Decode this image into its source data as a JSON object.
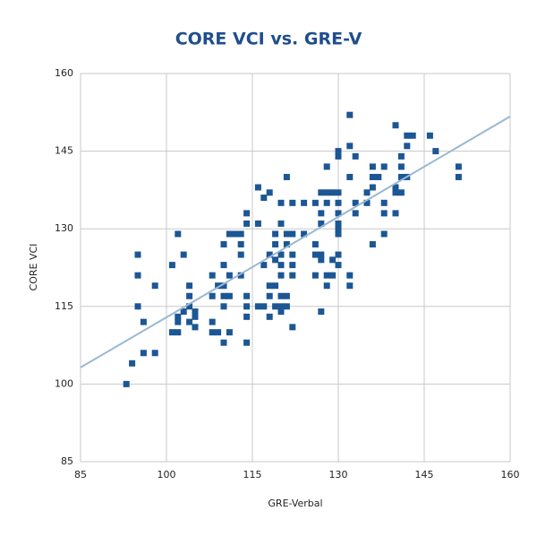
{
  "chart_data": {
    "type": "scatter",
    "title": "CORE VCI vs. GRE-V",
    "x_label": "GRE-Verbal",
    "y_label": "CORE VCI",
    "xlim": [
      85,
      160
    ],
    "xticks": [
      85,
      100,
      115,
      130,
      145,
      160
    ],
    "ylim": [
      85,
      160
    ],
    "yticks": [
      85,
      100,
      115,
      130,
      145,
      160
    ],
    "grid": true,
    "series": [
      {
        "color": "#1c5694",
        "x": [
          93,
          94,
          95,
          95,
          95,
          96,
          96,
          98,
          98,
          101,
          101,
          102,
          102,
          102,
          102,
          103,
          103,
          104,
          104,
          104,
          104,
          105,
          105,
          105,
          108,
          108,
          108,
          108,
          109,
          109,
          110,
          110,
          110,
          110,
          110,
          110,
          111,
          111,
          111,
          111,
          112,
          113,
          113,
          113,
          113,
          114,
          114,
          114,
          114,
          114,
          114,
          116,
          116,
          116,
          117,
          117,
          117,
          118,
          118,
          118,
          118,
          118,
          119,
          119,
          119,
          119,
          119,
          120,
          120,
          120,
          120,
          120,
          120,
          120,
          120,
          121,
          121,
          121,
          121,
          121,
          122,
          122,
          122,
          122,
          122,
          122,
          124,
          124,
          126,
          126,
          126,
          126,
          127,
          127,
          127,
          127,
          127,
          127,
          128,
          128,
          128,
          128,
          128,
          129,
          129,
          129,
          130,
          130,
          130,
          130,
          130,
          130,
          130,
          130,
          130,
          130,
          132,
          132,
          132,
          132,
          132,
          133,
          133,
          133,
          135,
          135,
          136,
          136,
          136,
          136,
          137,
          138,
          138,
          138,
          138,
          140,
          140,
          140,
          140,
          141,
          141,
          141,
          141,
          142,
          142,
          142,
          143,
          146,
          147,
          151,
          151
        ],
        "values": [
          100,
          104,
          125,
          121,
          115,
          112,
          106,
          119,
          106,
          123,
          110,
          110,
          129,
          113,
          112,
          125,
          114,
          119,
          117,
          115,
          112,
          114,
          113,
          111,
          121,
          117,
          112,
          110,
          119,
          110,
          127,
          123,
          119,
          117,
          115,
          108,
          121,
          117,
          110,
          129,
          129,
          129,
          127,
          125,
          121,
          133,
          131,
          117,
          115,
          113,
          108,
          138,
          131,
          115,
          136,
          123,
          115,
          137,
          125,
          119,
          117,
          113,
          129,
          127,
          124,
          119,
          115,
          135,
          131,
          125,
          123,
          121,
          117,
          115,
          114,
          140,
          129,
          127,
          117,
          115,
          135,
          129,
          125,
          123,
          121,
          111,
          129,
          135,
          135,
          127,
          125,
          121,
          137,
          133,
          131,
          125,
          124,
          114,
          137,
          135,
          142,
          121,
          119,
          137,
          124,
          121,
          137,
          135,
          133,
          131,
          130,
          129,
          125,
          123,
          145,
          144,
          152,
          146,
          140,
          121,
          119,
          144,
          135,
          133,
          137,
          135,
          142,
          140,
          138,
          127,
          140,
          142,
          135,
          133,
          129,
          150,
          138,
          137,
          133,
          144,
          142,
          140,
          137,
          146,
          148,
          140,
          148,
          148,
          145,
          142,
          140
        ]
      }
    ],
    "trendline": {
      "color": "#9ab8d2",
      "x": [
        85,
        160
      ],
      "values": [
        103.2,
        151.7
      ]
    }
  }
}
